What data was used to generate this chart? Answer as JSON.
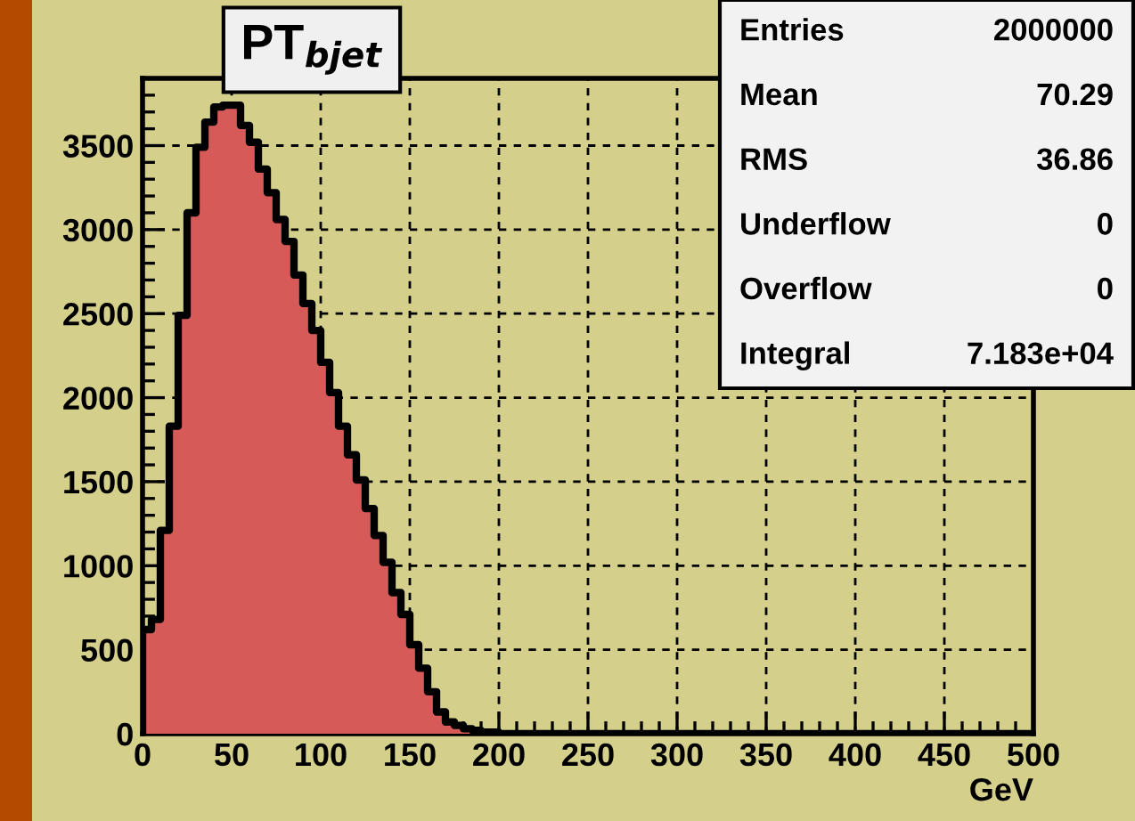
{
  "chart_data": {
    "type": "histogram",
    "title": "PT$_{bjet}$",
    "xlabel": "GeV",
    "bins": [
      0,
      5,
      10,
      15,
      20,
      25,
      30,
      35,
      40,
      45,
      50,
      55,
      60,
      65,
      70,
      75,
      80,
      85,
      90,
      95,
      100,
      105,
      110,
      115,
      120,
      125,
      130,
      135,
      140,
      145,
      150,
      155,
      160,
      165,
      170,
      175,
      180,
      185,
      190,
      195,
      200,
      205,
      210,
      215,
      220,
      225,
      230,
      235,
      240,
      245,
      250,
      255,
      260,
      265,
      270,
      275,
      280,
      285,
      290,
      295,
      300,
      305,
      310,
      315,
      320,
      325,
      330,
      335,
      340,
      345,
      350,
      355,
      360,
      365,
      370,
      375,
      380,
      385,
      390,
      395,
      400,
      405,
      410,
      415,
      420,
      425,
      430,
      435,
      440,
      445,
      450,
      455,
      460,
      465,
      470,
      475,
      480,
      485,
      490,
      495,
      500
    ],
    "values": [
      620,
      680,
      1210,
      1830,
      2490,
      3100,
      3490,
      3640,
      3730,
      3740,
      3740,
      3620,
      3520,
      3360,
      3220,
      3060,
      2930,
      2730,
      2560,
      2400,
      2210,
      2030,
      1830,
      1660,
      1510,
      1340,
      1180,
      1020,
      840,
      710,
      530,
      390,
      250,
      130,
      70,
      50,
      30,
      20,
      10,
      10,
      0,
      0,
      0,
      0,
      0,
      0,
      0,
      0,
      0,
      0,
      0,
      0,
      0,
      0,
      0,
      0,
      0,
      0,
      0,
      0,
      0,
      0,
      0,
      0,
      0,
      0,
      0,
      0,
      0,
      0,
      0,
      0,
      0,
      0,
      0,
      0,
      0,
      0,
      0,
      0,
      0,
      0,
      0,
      0,
      0,
      0,
      0,
      0,
      0,
      0,
      0,
      0,
      0,
      0,
      0,
      0,
      0,
      0,
      0,
      0
    ],
    "color": "#d65a57",
    "xlim": [
      0,
      500
    ],
    "xticks": [
      0,
      50,
      100,
      150,
      200,
      250,
      300,
      350,
      400,
      450,
      500
    ],
    "ylim": [
      0,
      3900
    ],
    "yticks": [
      0,
      500,
      1000,
      1500,
      2000,
      2500,
      3000,
      3500
    ],
    "grid": true,
    "annotations": [
      "Entries",
      "2000000",
      "Mean",
      "70.29",
      "RMS",
      "36.86",
      "Underflow",
      "0",
      "Overflow",
      "0",
      "Integral",
      "7.183e+04"
    ]
  }
}
